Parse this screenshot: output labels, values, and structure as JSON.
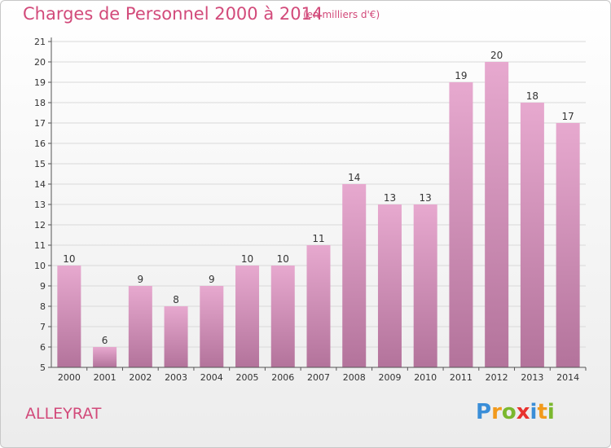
{
  "header": {
    "title": "Charges de Personnel 2000 à 2014",
    "subtitle": "(en milliers d'€)"
  },
  "footer": {
    "location": "ALLEYRAT",
    "logo": {
      "letters": [
        "P",
        "r",
        "o",
        "x",
        "i",
        "t",
        "i"
      ],
      "colors": [
        "#3a8ed8",
        "#f29a1c",
        "#7bb82e",
        "#e8322e",
        "#3a8ed8",
        "#f29a1c",
        "#7bb82e"
      ]
    }
  },
  "colors": {
    "bar_top": "#e7a9cf",
    "bar_bottom": "#b3739b",
    "text": "#d24a7a",
    "grid": "#d9d9d9",
    "axis": "#555555"
  },
  "chart_data": {
    "type": "bar",
    "categories": [
      "2000",
      "2001",
      "2002",
      "2003",
      "2004",
      "2005",
      "2006",
      "2007",
      "2008",
      "2009",
      "2010",
      "2011",
      "2012",
      "2013",
      "2014"
    ],
    "values": [
      10,
      6,
      9,
      8,
      9,
      10,
      10,
      11,
      14,
      13,
      13,
      19,
      20,
      18,
      17
    ],
    "title": "Charges de Personnel 2000 à 2014",
    "subtitle": "(en milliers d'€)",
    "xlabel": "",
    "ylabel": "",
    "ylim": [
      5,
      21
    ],
    "yticks": [
      5,
      6,
      7,
      8,
      9,
      10,
      11,
      12,
      13,
      14,
      15,
      16,
      17,
      18,
      19,
      20,
      21
    ],
    "grid": true,
    "data_labels": true
  }
}
